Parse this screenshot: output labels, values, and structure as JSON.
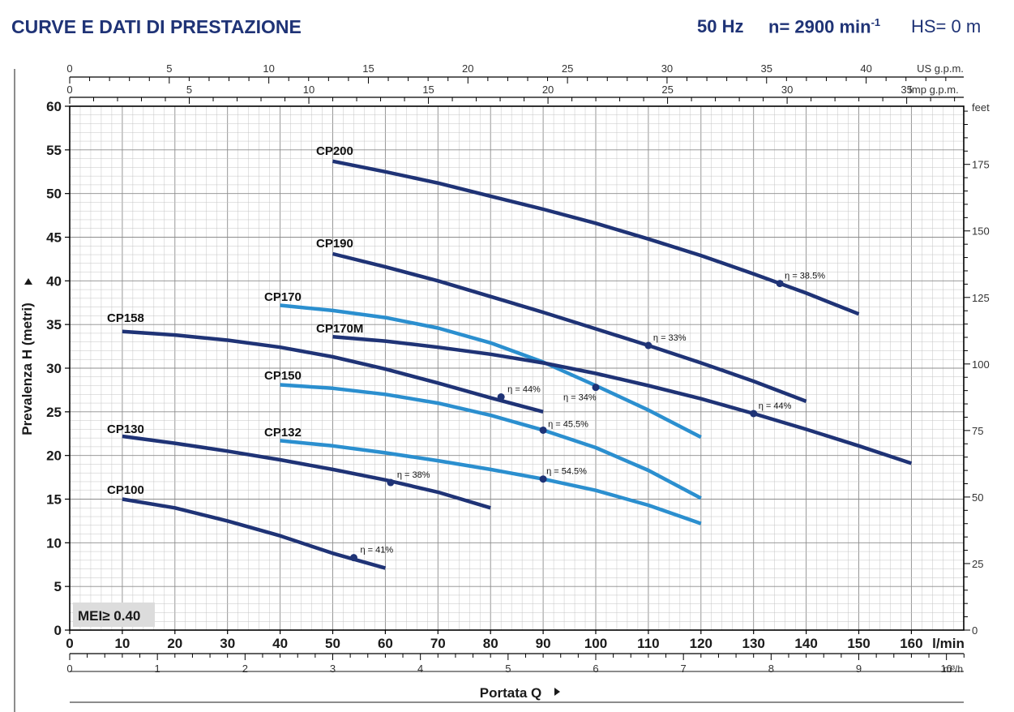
{
  "header": {
    "title": "CURVE E DATI DI PRESTAZIONE",
    "frequency": "50 Hz",
    "speed_prefix": "n= 2900 min",
    "speed_exp": "-1",
    "hs": "HS= 0 m"
  },
  "chart_data": {
    "type": "line",
    "xlabel": "Portata Q",
    "ylabel": "Prevalenza H (metri)",
    "xlim": [
      0,
      170
    ],
    "ylim": [
      0,
      60
    ],
    "x_ticks": [
      0,
      10,
      20,
      30,
      40,
      50,
      60,
      70,
      80,
      90,
      100,
      110,
      120,
      130,
      140,
      150,
      160
    ],
    "x_unit": "l/min",
    "y_ticks": [
      0,
      5,
      10,
      15,
      20,
      25,
      30,
      35,
      40,
      45,
      50,
      55,
      60
    ],
    "secondary_axes": {
      "us_gpm": {
        "unit": "US g.p.m.",
        "ticks": [
          0,
          5,
          10,
          15,
          20,
          25,
          30,
          35,
          40
        ]
      },
      "imp_gpm": {
        "unit": "Imp g.p.m.",
        "ticks": [
          0,
          5,
          10,
          15,
          20,
          25,
          30,
          35
        ]
      },
      "m3h": {
        "unit": "m³/h",
        "ticks": [
          0,
          1,
          2,
          3,
          4,
          5,
          6,
          7,
          8,
          9,
          10
        ]
      },
      "feet": {
        "unit": "feet",
        "ticks": [
          0,
          25,
          50,
          75,
          100,
          125,
          150,
          175
        ]
      }
    },
    "grid": true,
    "colors": {
      "dark": "#1f3376",
      "light": "#2b8fcf"
    },
    "series": [
      {
        "name": "CP100",
        "color": "dark",
        "x": [
          10,
          20,
          30,
          40,
          50,
          60
        ],
        "y": [
          15.0,
          14.0,
          12.5,
          10.8,
          8.8,
          7.1
        ],
        "eff_label": "η = 41%",
        "eff_point": [
          54,
          8.3
        ]
      },
      {
        "name": "CP130",
        "color": "dark",
        "x": [
          10,
          20,
          30,
          40,
          50,
          60,
          70,
          80
        ],
        "y": [
          22.2,
          21.4,
          20.5,
          19.5,
          18.4,
          17.2,
          15.8,
          14.0
        ],
        "eff_label": "η = 38%",
        "eff_point": [
          61,
          16.9
        ]
      },
      {
        "name": "CP132",
        "color": "light",
        "x": [
          40,
          50,
          60,
          70,
          80,
          90,
          100,
          110,
          120
        ],
        "y": [
          21.7,
          21.1,
          20.3,
          19.4,
          18.4,
          17.3,
          16.0,
          14.3,
          12.2
        ],
        "eff_label": "η = 54.5%",
        "eff_point": [
          90,
          17.3
        ]
      },
      {
        "name": "CP150",
        "color": "light",
        "x": [
          40,
          50,
          60,
          70,
          80,
          90,
          100,
          110,
          120
        ],
        "y": [
          28.1,
          27.7,
          27.0,
          26.0,
          24.6,
          22.9,
          20.9,
          18.3,
          15.1
        ],
        "eff_label": "η = 45.5%",
        "eff_point": [
          90,
          22.9
        ]
      },
      {
        "name": "CP158",
        "color": "dark",
        "x": [
          10,
          20,
          30,
          40,
          50,
          60,
          70,
          80,
          90
        ],
        "y": [
          34.2,
          33.8,
          33.2,
          32.4,
          31.3,
          29.9,
          28.3,
          26.6,
          25.0
        ],
        "eff_label": "η = 44%",
        "eff_point": [
          82,
          26.7
        ]
      },
      {
        "name": "CP170",
        "color": "light",
        "x": [
          40,
          50,
          60,
          70,
          80,
          90,
          100,
          110,
          120
        ],
        "y": [
          37.2,
          36.6,
          35.8,
          34.6,
          32.9,
          30.7,
          28.0,
          25.2,
          22.1
        ],
        "eff_label": "η = 34%",
        "eff_point": [
          100,
          27.8
        ]
      },
      {
        "name": "CP170M",
        "color": "dark",
        "x": [
          50,
          60,
          70,
          80,
          90,
          100,
          110,
          120,
          130,
          140,
          150,
          160
        ],
        "y": [
          33.6,
          33.1,
          32.4,
          31.6,
          30.6,
          29.4,
          28.0,
          26.5,
          24.8,
          23.0,
          21.1,
          19.1
        ],
        "eff_label": "η = 44%",
        "eff_point": [
          130,
          24.8
        ]
      },
      {
        "name": "CP190",
        "color": "dark",
        "x": [
          50,
          60,
          70,
          80,
          90,
          100,
          110,
          120,
          130,
          140
        ],
        "y": [
          43.1,
          41.6,
          40.0,
          38.2,
          36.4,
          34.5,
          32.6,
          30.6,
          28.5,
          26.2
        ],
        "eff_label": "η = 33%",
        "eff_point": [
          110,
          32.6
        ]
      },
      {
        "name": "CP200",
        "color": "dark",
        "x": [
          50,
          60,
          70,
          80,
          90,
          100,
          110,
          120,
          130,
          140,
          150
        ],
        "y": [
          53.7,
          52.5,
          51.2,
          49.7,
          48.2,
          46.6,
          44.8,
          42.9,
          40.8,
          38.6,
          36.2
        ],
        "eff_label": "η = 38.5%",
        "eff_point": [
          135,
          39.7
        ]
      }
    ],
    "annotation": "MEI≥ 0.40"
  }
}
